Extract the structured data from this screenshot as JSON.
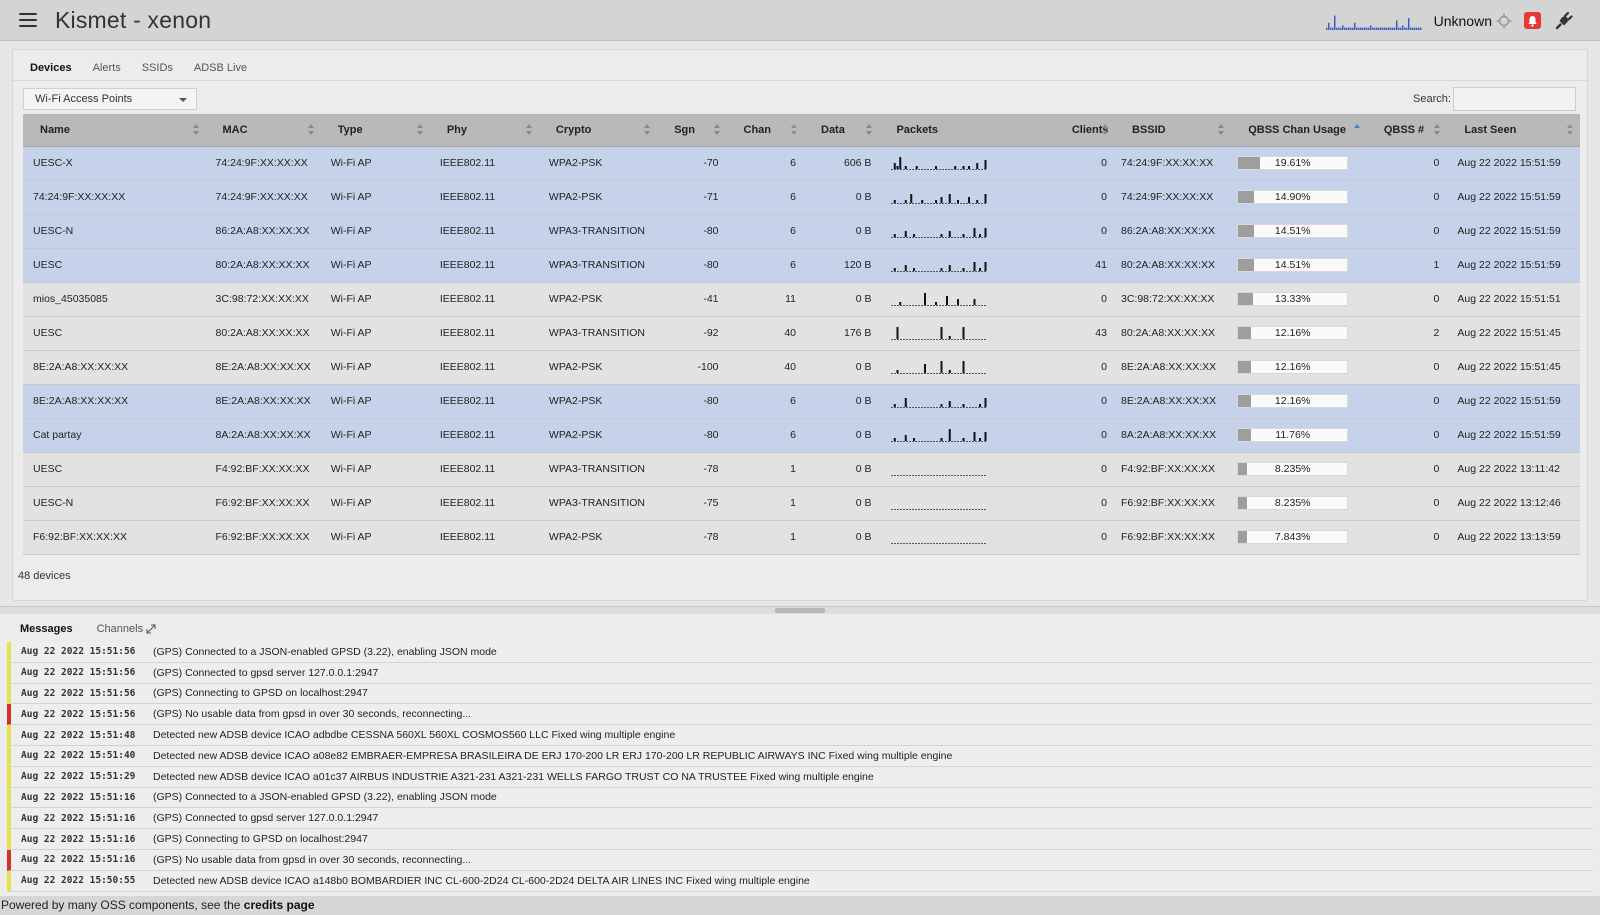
{
  "header": {
    "title": "Kismet - xenon",
    "gps_status": "Unknown",
    "spark": [
      1,
      3,
      1,
      1,
      6,
      1,
      1,
      1,
      2,
      1,
      1,
      1,
      1,
      1,
      3,
      1,
      1,
      1,
      1,
      1,
      1,
      1,
      2,
      1,
      1,
      1,
      1,
      1,
      1,
      1,
      1,
      1,
      1,
      1,
      1,
      4,
      1,
      1,
      2,
      1,
      1,
      5,
      1,
      1,
      1,
      1,
      1,
      1
    ]
  },
  "tabs": [
    {
      "label": "Devices",
      "active": true
    },
    {
      "label": "Alerts",
      "active": false
    },
    {
      "label": "SSIDs",
      "active": false
    },
    {
      "label": "ADSB Live",
      "active": false
    }
  ],
  "view_select": {
    "value": "Wi-Fi Access Points"
  },
  "search": {
    "label": "Search:",
    "value": ""
  },
  "table": {
    "columns": [
      "Name",
      "MAC",
      "Type",
      "Phy",
      "Crypto",
      "Sgn",
      "Chan",
      "Data",
      "Packets",
      "Clients",
      "BSSID",
      "QBSS Chan Usage",
      "QBSS #",
      "Last Seen"
    ],
    "rows": [
      {
        "selected": true,
        "name": "UESC-X",
        "mac": "74:24:9F:XX:XX:XX",
        "type": "Wi-Fi AP",
        "phy": "IEEE802.11",
        "crypto": "WPA2-PSK",
        "sgn": "-70",
        "chan": "6",
        "data": "606 B",
        "packets": [
          0,
          2,
          1,
          4,
          0,
          1,
          0,
          0,
          0,
          1,
          0,
          0,
          0,
          0,
          0,
          0,
          1,
          0,
          0,
          0,
          0,
          0,
          0,
          1,
          0,
          0,
          1,
          0,
          1,
          0,
          0,
          2,
          0,
          0,
          3
        ],
        "clients": "0",
        "bssid": "74:24:9F:XX:XX:XX",
        "qbss": 0.1961,
        "qbss_label": "19.61%",
        "qbss_num": "0",
        "last_seen": "Aug 22 2022 15:51:59"
      },
      {
        "selected": true,
        "name": "74:24:9F:XX:XX:XX",
        "mac": "74:24:9F:XX:XX:XX",
        "type": "Wi-Fi AP",
        "phy": "IEEE802.11",
        "crypto": "WPA2-PSK",
        "sgn": "-71",
        "chan": "6",
        "data": "0 B",
        "packets": [
          0,
          1,
          0,
          0,
          0,
          1,
          0,
          3,
          0,
          0,
          0,
          1,
          0,
          0,
          0,
          0,
          1,
          0,
          2,
          0,
          0,
          3,
          0,
          0,
          1,
          0,
          0,
          0,
          2,
          0,
          0,
          1,
          0,
          0,
          3
        ],
        "clients": "0",
        "bssid": "74:24:9F:XX:XX:XX",
        "qbss": 0.149,
        "qbss_label": "14.90%",
        "qbss_num": "0",
        "last_seen": "Aug 22 2022 15:51:59"
      },
      {
        "selected": true,
        "name": "UESC-N",
        "mac": "86:2A:A8:XX:XX:XX",
        "type": "Wi-Fi AP",
        "phy": "IEEE802.11",
        "crypto": "WPA3-TRANSITION",
        "sgn": "-80",
        "chan": "6",
        "data": "0 B",
        "packets": [
          0,
          1,
          0,
          0,
          0,
          2,
          0,
          0,
          1,
          0,
          0,
          0,
          0,
          0,
          0,
          0,
          0,
          0,
          1,
          0,
          0,
          2,
          0,
          0,
          0,
          0,
          1,
          0,
          0,
          0,
          3,
          0,
          1,
          0,
          3
        ],
        "clients": "0",
        "bssid": "86:2A:A8:XX:XX:XX",
        "qbss": 0.1451,
        "qbss_label": "14.51%",
        "qbss_num": "0",
        "last_seen": "Aug 22 2022 15:51:59"
      },
      {
        "selected": true,
        "name": "UESC",
        "mac": "80:2A:A8:XX:XX:XX",
        "type": "Wi-Fi AP",
        "phy": "IEEE802.11",
        "crypto": "WPA3-TRANSITION",
        "sgn": "-80",
        "chan": "6",
        "data": "120 B",
        "packets": [
          0,
          1,
          0,
          0,
          0,
          2,
          0,
          0,
          1,
          0,
          0,
          0,
          0,
          0,
          0,
          0,
          0,
          0,
          1,
          0,
          0,
          2,
          0,
          0,
          0,
          0,
          1,
          0,
          0,
          0,
          3,
          0,
          1,
          0,
          3
        ],
        "clients": "41",
        "bssid": "80:2A:A8:XX:XX:XX",
        "qbss": 0.1451,
        "qbss_label": "14.51%",
        "qbss_num": "1",
        "last_seen": "Aug 22 2022 15:51:59"
      },
      {
        "selected": false,
        "name": "mios_45035085",
        "mac": "3C:98:72:XX:XX:XX",
        "type": "Wi-Fi AP",
        "phy": "IEEE802.11",
        "crypto": "WPA2-PSK",
        "sgn": "-41",
        "chan": "11",
        "data": "0 B",
        "packets": [
          0,
          0,
          0,
          1,
          0,
          0,
          0,
          0,
          0,
          0,
          0,
          0,
          4,
          0,
          0,
          0,
          1,
          0,
          0,
          0,
          3,
          0,
          0,
          0,
          2,
          0,
          0,
          0,
          0,
          0,
          2,
          0,
          0,
          0,
          0
        ],
        "clients": "0",
        "bssid": "3C:98:72:XX:XX:XX",
        "qbss": 0.1333,
        "qbss_label": "13.33%",
        "qbss_num": "0",
        "last_seen": "Aug 22 2022 15:51:51"
      },
      {
        "selected": false,
        "name": "UESC",
        "mac": "80:2A:A8:XX:XX:XX",
        "type": "Wi-Fi AP",
        "phy": "IEEE802.11",
        "crypto": "WPA3-TRANSITION",
        "sgn": "-92",
        "chan": "40",
        "data": "176 B",
        "packets": [
          0,
          0,
          4,
          0,
          0,
          0,
          0,
          0,
          0,
          0,
          0,
          0,
          0,
          0,
          0,
          0,
          0,
          0,
          4,
          0,
          0,
          1,
          0,
          0,
          0,
          0,
          4,
          0,
          0,
          0,
          0,
          0,
          0,
          0,
          0
        ],
        "clients": "43",
        "bssid": "80:2A:A8:XX:XX:XX",
        "qbss": 0.1216,
        "qbss_label": "12.16%",
        "qbss_num": "2",
        "last_seen": "Aug 22 2022 15:51:45"
      },
      {
        "selected": false,
        "name": "8E:2A:A8:XX:XX:XX",
        "mac": "8E:2A:A8:XX:XX:XX",
        "type": "Wi-Fi AP",
        "phy": "IEEE802.11",
        "crypto": "WPA2-PSK",
        "sgn": "-100",
        "chan": "40",
        "data": "0 B",
        "packets": [
          0,
          0,
          1,
          0,
          0,
          0,
          0,
          0,
          0,
          0,
          0,
          0,
          3,
          0,
          0,
          0,
          0,
          0,
          4,
          0,
          0,
          1,
          0,
          0,
          0,
          0,
          4,
          0,
          0,
          0,
          0,
          0,
          0,
          0,
          0
        ],
        "clients": "0",
        "bssid": "8E:2A:A8:XX:XX:XX",
        "qbss": 0.1216,
        "qbss_label": "12.16%",
        "qbss_num": "0",
        "last_seen": "Aug 22 2022 15:51:45"
      },
      {
        "selected": true,
        "name": "8E:2A:A8:XX:XX:XX",
        "mac": "8E:2A:A8:XX:XX:XX",
        "type": "Wi-Fi AP",
        "phy": "IEEE802.11",
        "crypto": "WPA2-PSK",
        "sgn": "-80",
        "chan": "6",
        "data": "0 B",
        "packets": [
          0,
          1,
          0,
          0,
          0,
          3,
          0,
          0,
          0,
          0,
          0,
          0,
          0,
          0,
          0,
          0,
          0,
          0,
          1,
          0,
          0,
          2,
          0,
          0,
          0,
          0,
          1,
          0,
          0,
          0,
          0,
          0,
          1,
          0,
          3
        ],
        "clients": "0",
        "bssid": "8E:2A:A8:XX:XX:XX",
        "qbss": 0.1216,
        "qbss_label": "12.16%",
        "qbss_num": "0",
        "last_seen": "Aug 22 2022 15:51:59"
      },
      {
        "selected": true,
        "name": "Cat partay",
        "mac": "8A:2A:A8:XX:XX:XX",
        "type": "Wi-Fi AP",
        "phy": "IEEE802.11",
        "crypto": "WPA2-PSK",
        "sgn": "-80",
        "chan": "6",
        "data": "0 B",
        "packets": [
          0,
          1,
          0,
          0,
          0,
          2,
          0,
          0,
          1,
          0,
          0,
          0,
          0,
          0,
          0,
          0,
          0,
          0,
          1,
          0,
          0,
          4,
          0,
          0,
          0,
          0,
          1,
          0,
          0,
          0,
          3,
          0,
          1,
          0,
          3
        ],
        "clients": "0",
        "bssid": "8A:2A:A8:XX:XX:XX",
        "qbss": 0.1176,
        "qbss_label": "11.76%",
        "qbss_num": "0",
        "last_seen": "Aug 22 2022 15:51:59"
      },
      {
        "selected": false,
        "name": "UESC",
        "mac": "F4:92:BF:XX:XX:XX",
        "type": "Wi-Fi AP",
        "phy": "IEEE802.11",
        "crypto": "WPA3-TRANSITION",
        "sgn": "-78",
        "chan": "1",
        "data": "0 B",
        "packets": [
          0,
          0,
          0,
          0,
          0,
          0,
          0,
          0,
          0,
          0,
          0,
          0,
          0,
          0,
          0,
          0,
          0,
          0,
          0,
          0,
          0,
          0,
          0,
          0,
          0,
          0,
          0,
          0,
          0,
          0,
          0,
          0,
          0,
          0,
          0
        ],
        "clients": "0",
        "bssid": "F4:92:BF:XX:XX:XX",
        "qbss": 0.08235,
        "qbss_label": "8.235%",
        "qbss_num": "0",
        "last_seen": "Aug 22 2022 13:11:42"
      },
      {
        "selected": false,
        "name": "UESC-N",
        "mac": "F6:92:BF:XX:XX:XX",
        "type": "Wi-Fi AP",
        "phy": "IEEE802.11",
        "crypto": "WPA3-TRANSITION",
        "sgn": "-75",
        "chan": "1",
        "data": "0 B",
        "packets": [
          0,
          0,
          0,
          0,
          0,
          0,
          0,
          0,
          0,
          0,
          0,
          0,
          0,
          0,
          0,
          0,
          0,
          0,
          0,
          0,
          0,
          0,
          0,
          0,
          0,
          0,
          0,
          0,
          0,
          0,
          0,
          0,
          0,
          0,
          0
        ],
        "clients": "0",
        "bssid": "F6:92:BF:XX:XX:XX",
        "qbss": 0.08235,
        "qbss_label": "8.235%",
        "qbss_num": "0",
        "last_seen": "Aug 22 2022 13:12:46"
      },
      {
        "selected": false,
        "name": "F6:92:BF:XX:XX:XX",
        "mac": "F6:92:BF:XX:XX:XX",
        "type": "Wi-Fi AP",
        "phy": "IEEE802.11",
        "crypto": "WPA2-PSK",
        "sgn": "-78",
        "chan": "1",
        "data": "0 B",
        "packets": [
          0,
          0,
          0,
          0,
          0,
          0,
          0,
          0,
          0,
          0,
          0,
          0,
          0,
          0,
          0,
          0,
          0,
          0,
          0,
          0,
          0,
          0,
          0,
          0,
          0,
          0,
          0,
          0,
          0,
          0,
          0,
          0,
          0,
          0,
          0
        ],
        "clients": "0",
        "bssid": "F6:92:BF:XX:XX:XX",
        "qbss": 0.07843,
        "qbss_label": "7.843%",
        "qbss_num": "0",
        "last_seen": "Aug 22 2022 13:13:59"
      }
    ]
  },
  "device_count": "48 devices",
  "messages_tabs": [
    {
      "label": "Messages",
      "active": true
    },
    {
      "label": "Channels",
      "active": false
    }
  ],
  "messages": [
    {
      "time": "Aug 22 2022 15:51:56",
      "text": "(GPS) Connected to a JSON-enabled GPSD (3.22), enabling JSON mode",
      "level": "info"
    },
    {
      "time": "Aug 22 2022 15:51:56",
      "text": "(GPS) Connected to gpsd server 127.0.0.1:2947",
      "level": "info"
    },
    {
      "time": "Aug 22 2022 15:51:56",
      "text": "(GPS) Connecting to GPSD on localhost:2947",
      "level": "info"
    },
    {
      "time": "Aug 22 2022 15:51:56",
      "text": "(GPS) No usable data from gpsd in over 30 seconds, reconnecting...",
      "level": "error"
    },
    {
      "time": "Aug 22 2022 15:51:48",
      "text": "Detected new ADSB device ICAO adbdbe CESSNA 560XL 560XL COSMOS560 LLC Fixed wing multiple engine",
      "level": "info"
    },
    {
      "time": "Aug 22 2022 15:51:40",
      "text": "Detected new ADSB device ICAO a08e82 EMBRAER-EMPRESA BRASILEIRA DE ERJ 170-200 LR ERJ 170-200 LR REPUBLIC AIRWAYS INC Fixed wing multiple engine",
      "level": "info"
    },
    {
      "time": "Aug 22 2022 15:51:29",
      "text": "Detected new ADSB device ICAO a01c37 AIRBUS INDUSTRIE A321-231 A321-231 WELLS FARGO TRUST CO NA TRUSTEE Fixed wing multiple engine",
      "level": "info"
    },
    {
      "time": "Aug 22 2022 15:51:16",
      "text": "(GPS) Connected to a JSON-enabled GPSD (3.22), enabling JSON mode",
      "level": "info"
    },
    {
      "time": "Aug 22 2022 15:51:16",
      "text": "(GPS) Connected to gpsd server 127.0.0.1:2947",
      "level": "info"
    },
    {
      "time": "Aug 22 2022 15:51:16",
      "text": "(GPS) Connecting to GPSD on localhost:2947",
      "level": "info"
    },
    {
      "time": "Aug 22 2022 15:51:16",
      "text": "(GPS) No usable data from gpsd in over 30 seconds, reconnecting...",
      "level": "error"
    },
    {
      "time": "Aug 22 2022 15:50:55",
      "text": "Detected new ADSB device ICAO a148b0 BOMBARDIER INC CL-600-2D24 CL-600-2D24 DELTA AIR LINES INC Fixed wing multiple engine",
      "level": "info"
    }
  ],
  "footer": {
    "text": "Powered by many OSS components, see the ",
    "link": "credits page"
  },
  "colors": {
    "selected_row": "#c5d2ea",
    "unselected_row": "#e2e2e2",
    "info_marker": "#e8e24a",
    "error_marker": "#d32f2f",
    "alert_badge": "#e53935",
    "spark_color": "#3f5fbf"
  }
}
